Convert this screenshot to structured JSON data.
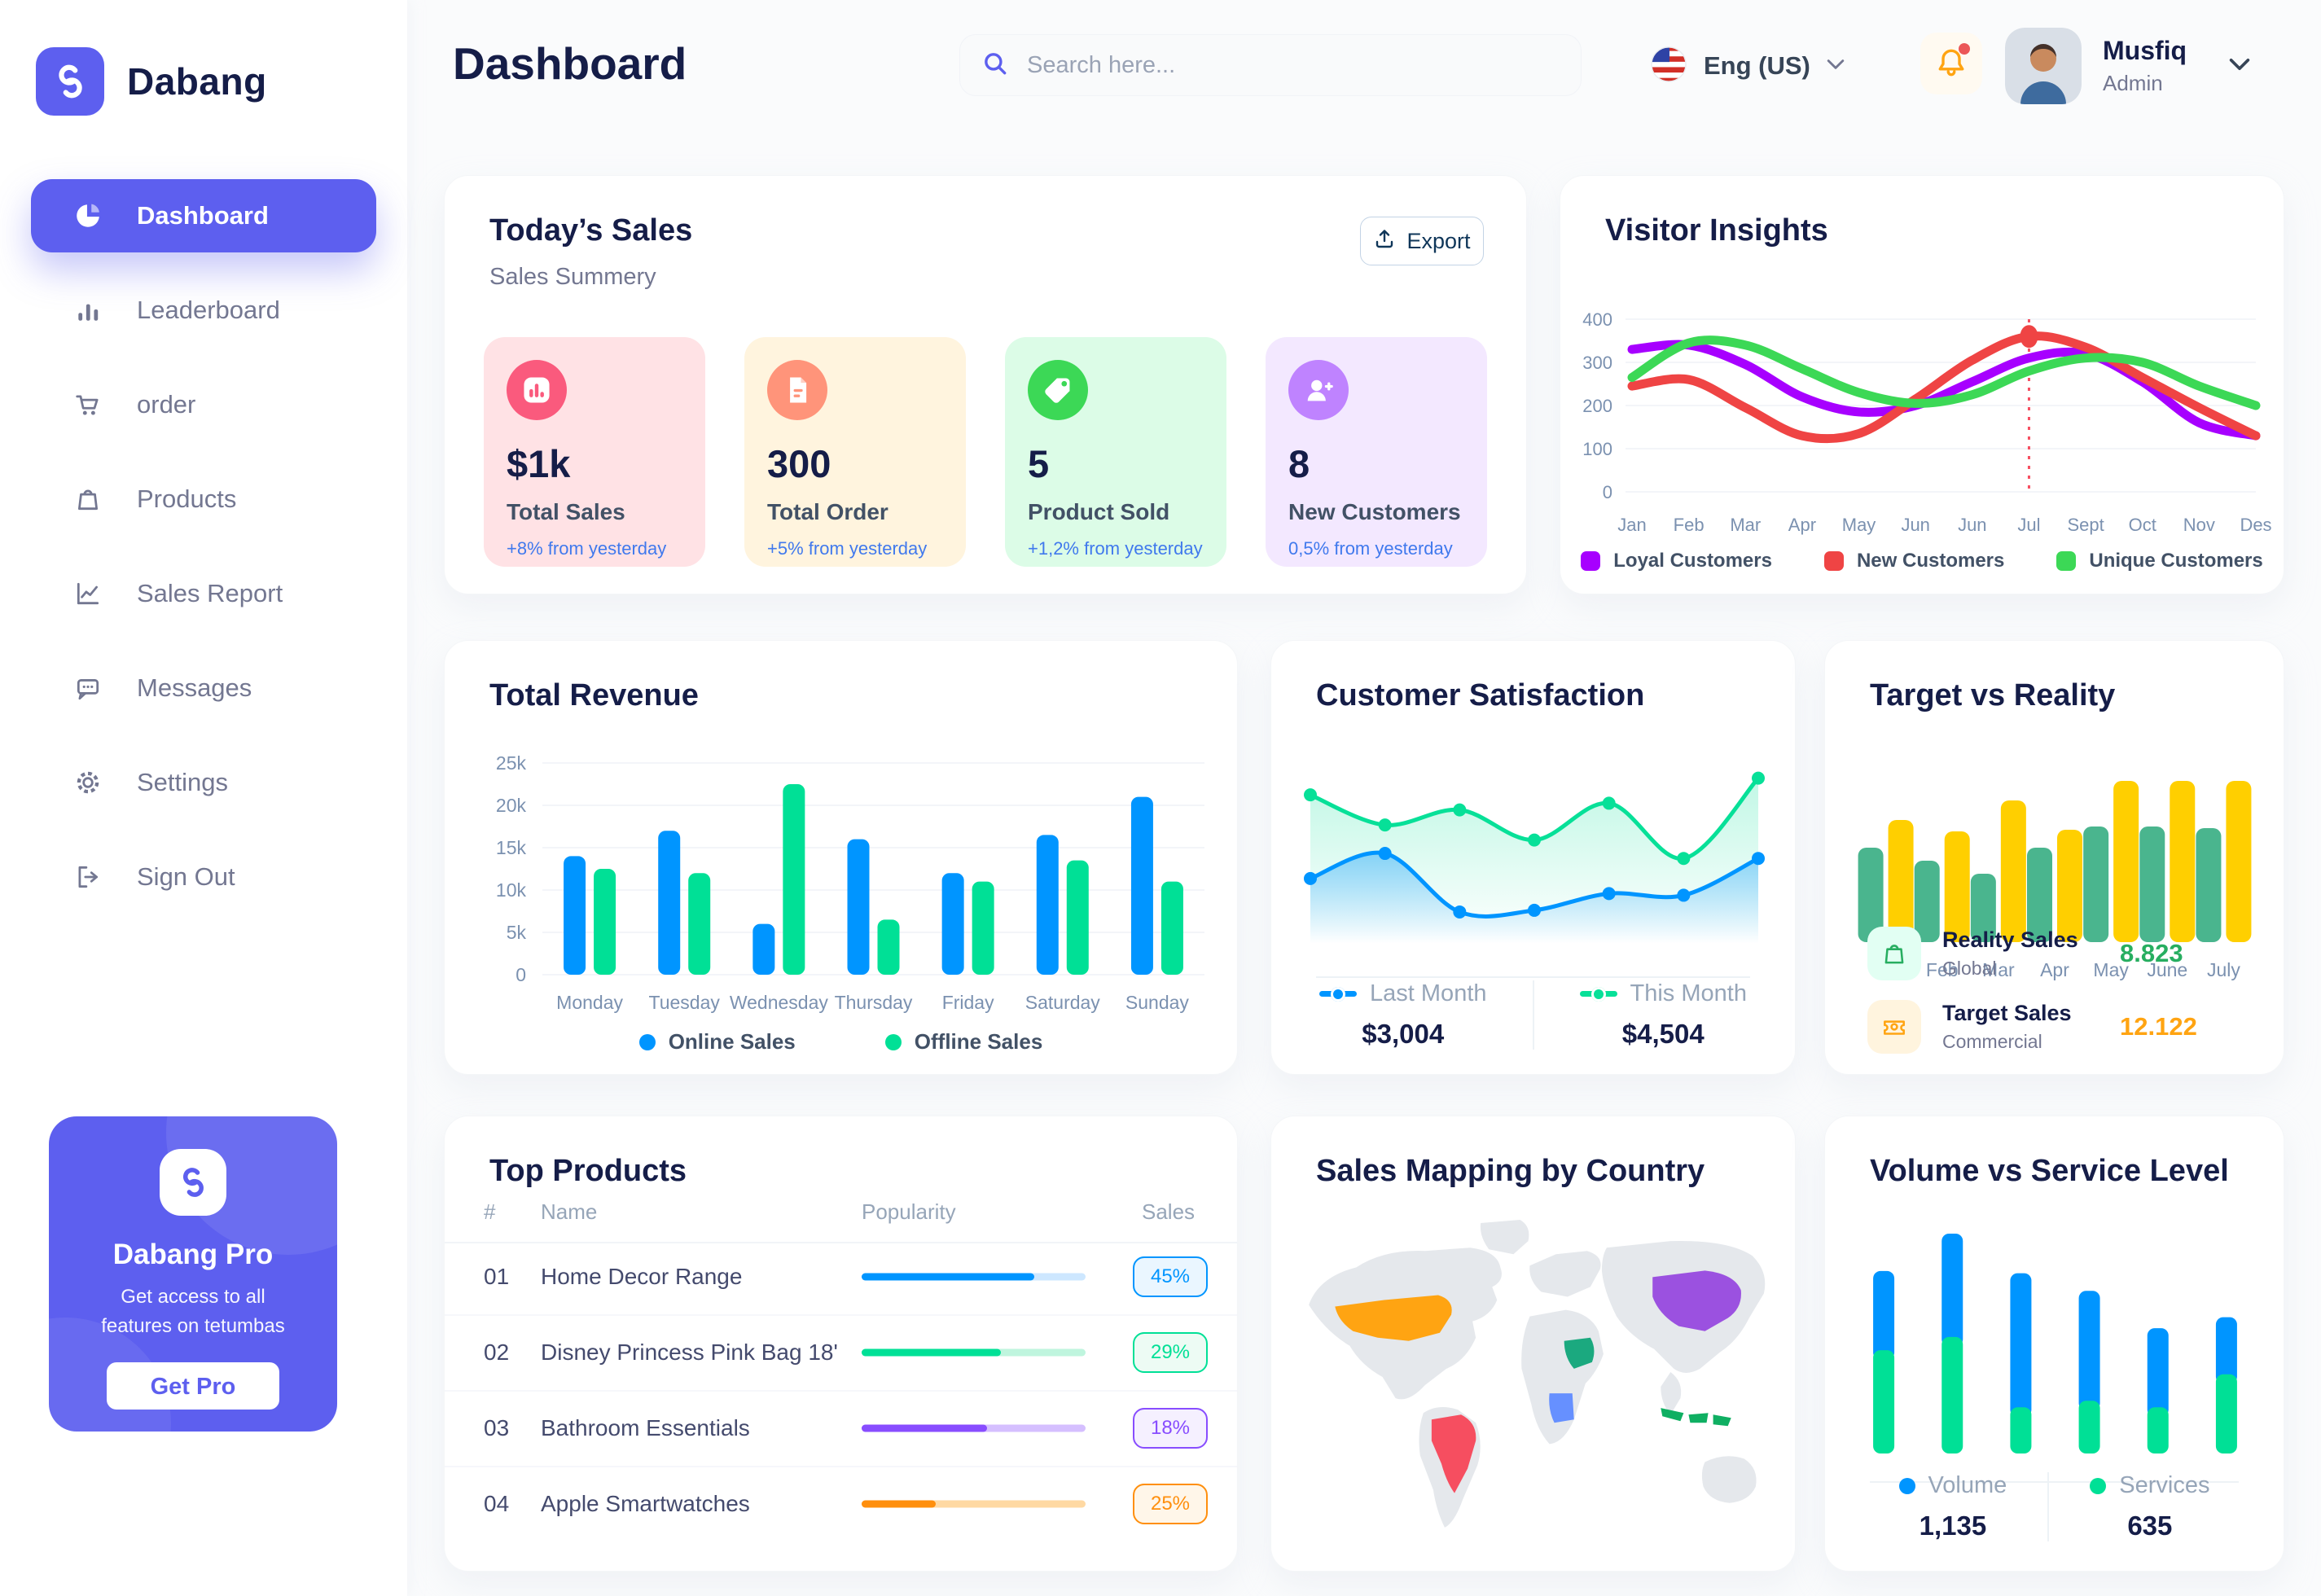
{
  "brand": {
    "name": "Dabang"
  },
  "sidebar": {
    "items": [
      {
        "label": "Dashboard"
      },
      {
        "label": "Leaderboard"
      },
      {
        "label": "order"
      },
      {
        "label": "Products"
      },
      {
        "label": "Sales Report"
      },
      {
        "label": "Messages"
      },
      {
        "label": "Settings"
      },
      {
        "label": "Sign Out"
      }
    ],
    "pro_card": {
      "title": "Dabang Pro",
      "description": "Get access to all features on tetumbas",
      "button_label": "Get Pro"
    }
  },
  "header": {
    "title": "Dashboard",
    "search_placeholder": "Search here...",
    "language": "Eng (US)",
    "user_name": "Musfiq",
    "user_role": "Admin"
  },
  "today_sales": {
    "title": "Today’s Sales",
    "subtitle": "Sales Summery",
    "export_label": "Export",
    "cards": [
      {
        "value": "$1k",
        "label": "Total Sales",
        "delta": "+8% from yesterday",
        "bg": "#FFE2E5",
        "accent": "#FA5A7D",
        "icon": "bar-chart-icon"
      },
      {
        "value": "300",
        "label": "Total Order",
        "delta": "+5% from yesterday",
        "bg": "#FFF4DE",
        "accent": "#FF947A",
        "icon": "file-list-icon"
      },
      {
        "value": "5",
        "label": "Product Sold",
        "delta": "+1,2% from yesterday",
        "bg": "#DCFCE7",
        "accent": "#3CD856",
        "icon": "tag-icon"
      },
      {
        "value": "8",
        "label": "New Customers",
        "delta": "0,5% from yesterday",
        "bg": "#F3E8FF",
        "accent": "#BF83FF",
        "icon": "user-plus-icon"
      }
    ]
  },
  "visitor_insights": {
    "title": "Visitor Insights"
  },
  "total_revenue": {
    "title": "Total Revenue"
  },
  "customer_satisfaction": {
    "title": "Customer Satisfaction",
    "legend": [
      {
        "label": "Last Month",
        "value": "$3,004",
        "color": "#0095FF"
      },
      {
        "label": "This Month",
        "value": "$4,504",
        "color": "#07E098"
      }
    ]
  },
  "target_vs_reality": {
    "title": "Target vs Reality",
    "legend": [
      {
        "title": "Reality Sales",
        "subtitle": "Global",
        "value": "8.823",
        "value_color": "#27AE60",
        "icon_bg": "#E2FFF3",
        "icon_color": "#27AE60",
        "icon": "shopping-bag-icon"
      },
      {
        "title": "Target Sales",
        "subtitle": "Commercial",
        "value": "12.122",
        "value_color": "#FFA412",
        "icon_bg": "#FFF4DE",
        "icon_color": "#FFA412",
        "icon": "ticket-icon"
      }
    ]
  },
  "top_products": {
    "title": "Top Products",
    "columns": [
      "#",
      "Name",
      "Popularity",
      "Sales"
    ],
    "rows": [
      {
        "num": "01",
        "name": "Home Decor Range",
        "popularity": 77,
        "sales": "45%",
        "color": "#0095FF",
        "track": "#CDE7FF",
        "badge_bg": "#EAF6FF"
      },
      {
        "num": "02",
        "name": "Disney Princess Pink Bag 18'",
        "popularity": 62,
        "sales": "29%",
        "color": "#00E096",
        "track": "#BFF5DE",
        "badge_bg": "#EDFBF4"
      },
      {
        "num": "03",
        "name": "Bathroom Essentials",
        "popularity": 56,
        "sales": "18%",
        "color": "#884DFF",
        "track": "#D5BFFF",
        "badge_bg": "#F5F0FF"
      },
      {
        "num": "04",
        "name": "Apple Smartwatches",
        "popularity": 33,
        "sales": "25%",
        "color": "#FF8F0D",
        "track": "#FFD9A3",
        "badge_bg": "#FFF6E9"
      }
    ]
  },
  "sales_mapping": {
    "title": "Sales Mapping by Country",
    "countries": [
      {
        "key": "united-states",
        "name": "United States",
        "color": "#FFA412"
      },
      {
        "key": "brazil",
        "name": "Brazil",
        "color": "#F64E60"
      },
      {
        "key": "saudi-arabia",
        "name": "Saudi Arabia",
        "color": "#1BA97F"
      },
      {
        "key": "dr-congo",
        "name": "DR Congo",
        "color": "#6690FF"
      },
      {
        "key": "china",
        "name": "China",
        "color": "#9B51E0"
      },
      {
        "key": "indonesia",
        "name": "Indonesia",
        "color": "#0FAF62"
      }
    ]
  },
  "volume_service": {
    "title": "Volume vs Service Level",
    "legend": [
      {
        "label": "Volume",
        "value": "1,135",
        "color": "#0095FF"
      },
      {
        "label": "Services",
        "value": "635",
        "color": "#00E096"
      }
    ]
  },
  "chart_data": [
    {
      "id": "visitor_insights",
      "type": "line",
      "title": "Visitor Insights",
      "x_labels": [
        "Jan",
        "Feb",
        "Mar",
        "Apr",
        "May",
        "Jun",
        "Jun",
        "Jul",
        "Sept",
        "Oct",
        "Nov",
        "Des"
      ],
      "ylim": [
        0,
        400
      ],
      "yticks": [
        0,
        100,
        200,
        300,
        400
      ],
      "legend_position": "bottom",
      "series": [
        {
          "name": "Loyal Customers",
          "color": "#A700FF",
          "values": [
            330,
            340,
            295,
            220,
            185,
            200,
            255,
            310,
            320,
            255,
            160,
            130
          ]
        },
        {
          "name": "New Customers",
          "color": "#EF4444",
          "values": [
            245,
            260,
            195,
            130,
            135,
            215,
            305,
            360,
            335,
            265,
            195,
            130
          ]
        },
        {
          "name": "Unique Customers",
          "color": "#3CD856",
          "values": [
            265,
            345,
            340,
            285,
            230,
            205,
            225,
            280,
            310,
            300,
            245,
            200
          ]
        }
      ],
      "highlight": {
        "series": 1,
        "index": 7
      }
    },
    {
      "id": "total_revenue",
      "type": "bar",
      "title": "Total Revenue",
      "categories": [
        "Monday",
        "Tuesday",
        "Wednesday",
        "Thursday",
        "Friday",
        "Saturday",
        "Sunday"
      ],
      "ylim": [
        0,
        25000
      ],
      "ytick_labels": [
        "0",
        "5k",
        "10k",
        "15k",
        "20k",
        "25k"
      ],
      "legend_position": "bottom",
      "series": [
        {
          "name": "Online Sales",
          "color": "#0095FF",
          "values": [
            14000,
            17000,
            6000,
            16000,
            12000,
            16500,
            21000
          ]
        },
        {
          "name": "Offline Sales",
          "color": "#00E096",
          "values": [
            12500,
            12000,
            22500,
            6500,
            11000,
            13500,
            11000
          ]
        }
      ]
    },
    {
      "id": "customer_satisfaction",
      "type": "area",
      "title": "Customer Satisfaction",
      "ylim": [
        0,
        110
      ],
      "series": [
        {
          "name": "Last Month",
          "color": "#0095FF",
          "values": [
            39,
            54,
            19,
            20,
            30,
            29,
            51
          ]
        },
        {
          "name": "This Month",
          "color": "#07E098",
          "values": [
            89,
            71,
            80,
            62,
            84,
            51,
            99
          ]
        }
      ]
    },
    {
      "id": "target_vs_reality",
      "type": "bar",
      "title": "Target vs Reality",
      "categories": [
        "Jan",
        "Feb",
        "Mar",
        "Apr",
        "May",
        "June",
        "July"
      ],
      "ylim": [
        0,
        110
      ],
      "series": [
        {
          "name": "Reality Sales",
          "color": "#4AB58E",
          "values": [
            58,
            50,
            42,
            58,
            71,
            71,
            70
          ]
        },
        {
          "name": "Target Sales",
          "color": "#FFCF00",
          "values": [
            75,
            68,
            87,
            69,
            99,
            99,
            99
          ]
        }
      ]
    },
    {
      "id": "volume_service_level",
      "type": "stacked-bar",
      "title": "Volume vs Service Level",
      "ylim": [
        0,
        110
      ],
      "series": [
        {
          "name": "Volume",
          "color": "#0095FF",
          "values": [
            36,
            47,
            61,
            50,
            36,
            26
          ]
        },
        {
          "name": "Services",
          "color": "#00E096",
          "values": [
            47,
            53,
            21,
            24,
            21,
            36
          ]
        }
      ]
    }
  ]
}
